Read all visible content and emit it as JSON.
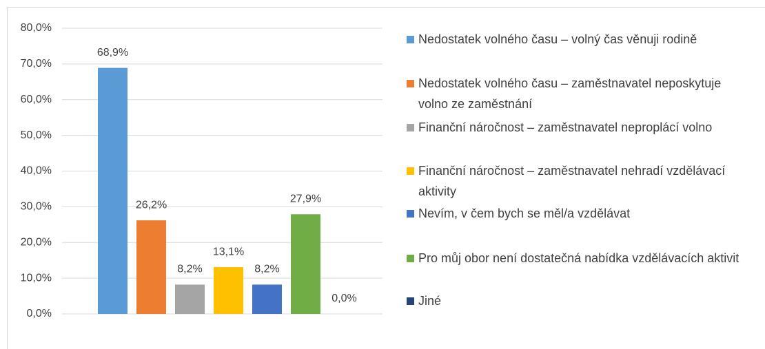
{
  "chart_data": {
    "type": "bar",
    "categories": [
      null
    ],
    "series": [
      {
        "name": "Nedostatek volného času – volný čas věnuji rodině",
        "color": "#5b9bd5",
        "values": [
          68.9
        ],
        "value_labels": [
          "68,9%"
        ]
      },
      {
        "name": "Nedostatek volného času – zaměstnavatel neposkytuje volno ze zaměstnání",
        "color": "#ed7d31",
        "values": [
          26.2
        ],
        "value_labels": [
          "26,2%"
        ]
      },
      {
        "name": "Finanční náročnost – zaměstnavatel neproplácí volno",
        "color": "#a5a5a5",
        "values": [
          8.2
        ],
        "value_labels": [
          "8,2%"
        ]
      },
      {
        "name": "Finanční náročnost – zaměstnavatel nehradí vzdělávací aktivity",
        "color": "#ffc000",
        "values": [
          13.1
        ],
        "value_labels": [
          "13,1%"
        ]
      },
      {
        "name": "Nevím, v čem bych se měl/a vzdělávat",
        "color": "#4472c4",
        "values": [
          8.2
        ],
        "value_labels": [
          "8,2%"
        ]
      },
      {
        "name": "Pro můj obor není dostatečná nabídka vzdělávacích aktivit",
        "color": "#70ad47",
        "values": [
          27.9
        ],
        "value_labels": [
          "27,9%"
        ]
      },
      {
        "name": "Jiné",
        "color": "#264478",
        "values": [
          0
        ],
        "value_labels": [
          "0,0%"
        ]
      }
    ],
    "ylim": [
      0,
      80
    ],
    "yticks": [
      {
        "value": 0,
        "label": "0,0%"
      },
      {
        "value": 10,
        "label": "10,0%"
      },
      {
        "value": 20,
        "label": "20,0%"
      },
      {
        "value": 30,
        "label": "30,0%"
      },
      {
        "value": 40,
        "label": "40,0%"
      },
      {
        "value": 50,
        "label": "50,0%"
      },
      {
        "value": 60,
        "label": "60,0%"
      },
      {
        "value": 70,
        "label": "70,0%"
      },
      {
        "value": 80,
        "label": "80,0%"
      }
    ],
    "grid": true,
    "legend": "right"
  }
}
